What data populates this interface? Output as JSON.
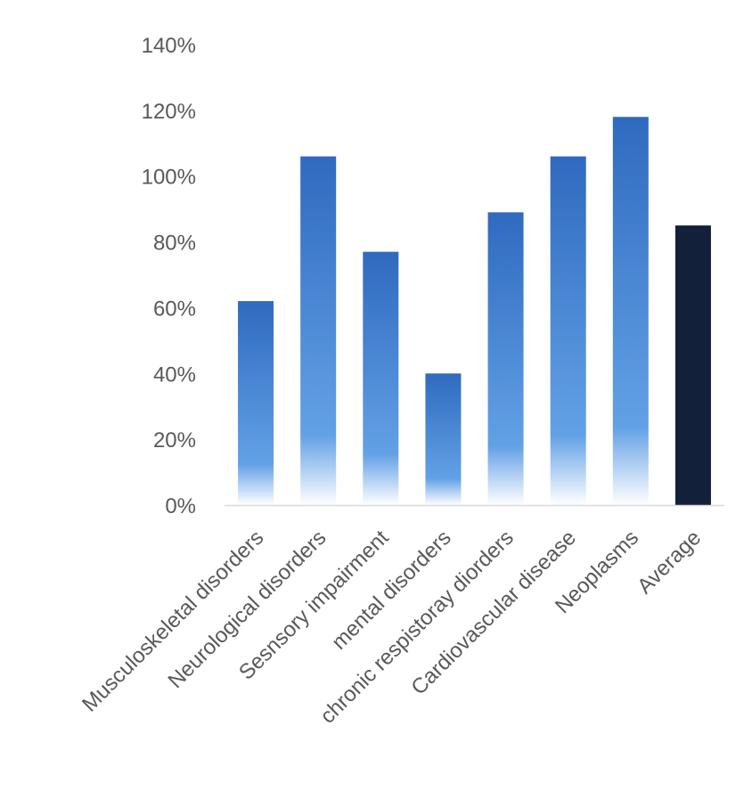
{
  "chart_data": {
    "type": "bar",
    "title": "",
    "xlabel": "",
    "ylabel": "",
    "categories": [
      "Musculoskeletal disorders",
      "Neurological disorders",
      "Sesnsory impairment",
      "mental disorders",
      "chronic respistoray diorders",
      "Cardiovascular disease",
      "Neoplasms",
      "Average"
    ],
    "values": [
      62,
      106,
      77,
      40,
      89,
      106,
      118,
      85
    ],
    "ylim": [
      0,
      140
    ],
    "yticks": [
      0,
      20,
      40,
      60,
      80,
      100,
      120,
      140
    ],
    "ytick_labels": [
      "0%",
      "20%",
      "40%",
      "60%",
      "80%",
      "100%",
      "120%",
      "140%"
    ],
    "grid": false,
    "legend": "none",
    "colors": {
      "bar_gradient_top": "#2f6abf",
      "bar_gradient_mid": "#63a1e6",
      "bar_gradient_bottom": "#ffffff",
      "average_bar": "#13203a",
      "axis_line": "#d9d9d9",
      "label_text": "#595959"
    }
  }
}
